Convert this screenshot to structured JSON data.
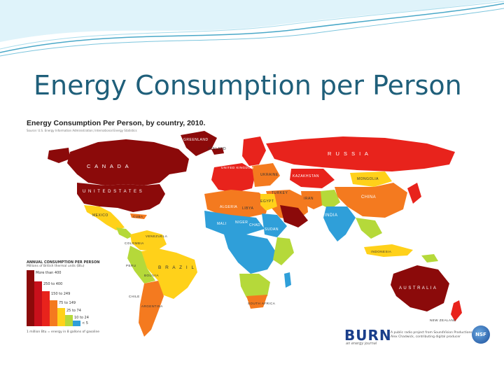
{
  "slide": {
    "title": "Energy Consumption per Person"
  },
  "map": {
    "title": "Energy Consumption Per Person, by country, 2010.",
    "source_note": "Source: U.S. Energy Information Administration; International Energy Statistics",
    "labels": {
      "canada": "C A N A D A",
      "united_states": "U N I T E D   S T A T E S",
      "greenland": "GREENLAND",
      "iceland": "ICELAND",
      "russia": "R U S S I A",
      "kazakhstan": "KAZAKHSTAN",
      "mongolia": "MONGOLIA",
      "china": "CHINA",
      "india": "INDIA",
      "iran": "IRAN",
      "turkey": "TURKEY",
      "algeria": "ALGERIA",
      "libya": "LIBYA",
      "egypt": "EGYPT",
      "mali": "MALI",
      "niger": "NIGER",
      "chad": "CHAD",
      "sudan": "SUDAN",
      "mexico": "MEXICO",
      "cuba": "CUBA",
      "colombia": "COLOMBIA",
      "venezuela": "VENEZUELA",
      "brazil": "B R A Z I L",
      "peru": "PERU",
      "bolivia": "BOLIVIA",
      "chile": "CHILE",
      "argentina": "ARGENTINA",
      "south_africa": "SOUTH AFRICA",
      "indonesia": "INDONESIA",
      "australia": "A U S T R A L I A",
      "new_zealand": "NEW ZEALAND",
      "ukraine": "UKRAINE",
      "united_kingdom": "UNITED KINGDOM"
    }
  },
  "legend": {
    "title": "ANNUAL CONSUMPTION PER PERSON",
    "subtitle": "Millions of British thermal units (Btu)",
    "bins": [
      {
        "label": "More than 400",
        "color": "#8b0a0a",
        "level": 1.0
      },
      {
        "label": "250 to 400",
        "color": "#c8101b",
        "level": 0.8
      },
      {
        "label": "150 to 249",
        "color": "#e8231c",
        "level": 0.62
      },
      {
        "label": "75 to 149",
        "color": "#f47a1f",
        "level": 0.46
      },
      {
        "label": "25 to 74",
        "color": "#ffd11a",
        "level": 0.32
      },
      {
        "label": "10 to 24",
        "color": "#b5d93a",
        "level": 0.2
      },
      {
        "label": "< 5",
        "color": "#2f9fd9",
        "level": 0.1
      }
    ],
    "note": "1 million Btu = energy in 8 gallons of gasoline"
  },
  "footer": {
    "logo": "BURN",
    "tagline": "an energy journal",
    "credit_line1": "A public radio project from SoundVision Productions",
    "credit_line2": "Alex Chadwick, contributing digital producer",
    "nsf": "NSF"
  },
  "colors": {
    "title": "#1f5f7a",
    "wave": "#4aa8c8"
  }
}
